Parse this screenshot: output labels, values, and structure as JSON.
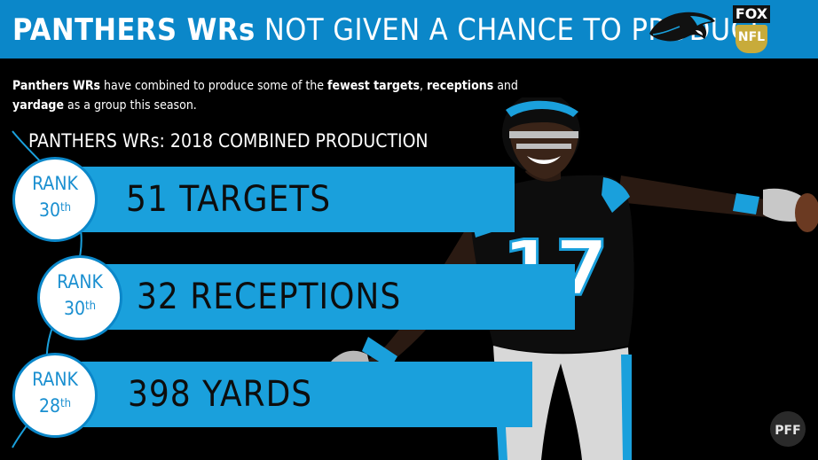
{
  "header": {
    "title_bold": "PANTHERS WRs",
    "title_rest": " NOT GIVEN A CHANCE TO PRODUCE",
    "fox_text": "FOX",
    "nfl_text": "NFL"
  },
  "subtitle": {
    "part1": "Panthers WRs",
    "part2": " have combined to produce some of the ",
    "part3": "fewest targets",
    "part4": ", ",
    "part5": "receptions",
    "part6": " and ",
    "part7": "yardage",
    "part8": " as a group this season."
  },
  "section_title": "PANTHERS WRs: 2018 COMBINED PRODUCTION",
  "stats": [
    {
      "rank_label": "RANK",
      "rank_num": "30",
      "rank_suffix": "th",
      "value": "51 TARGETS"
    },
    {
      "rank_label": "RANK",
      "rank_num": "30",
      "rank_suffix": "th",
      "value": "32 RECEPTIONS"
    },
    {
      "rank_label": "RANK",
      "rank_num": "28",
      "rank_suffix": "th",
      "value": "398 YARDS"
    }
  ],
  "player": {
    "jersey_number": "17"
  },
  "colors": {
    "blue": "#1aa0dc",
    "header_blue": "#0b87c9",
    "background": "#000000"
  },
  "icons": {
    "team_logo": "panthers-logo-icon",
    "network_logo": "fox-nfl-logo-icon",
    "watermark": "pff-logo-icon"
  }
}
